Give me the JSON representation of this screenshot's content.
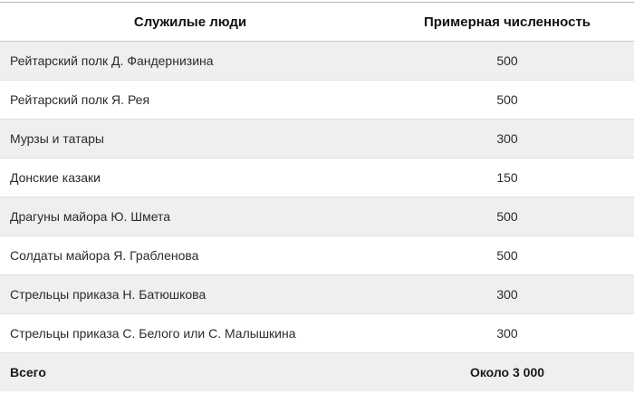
{
  "table": {
    "columns": [
      {
        "label": "Служилые люди"
      },
      {
        "label": "Примерная численность"
      }
    ],
    "rows": [
      {
        "name": "Рейтарский полк Д. Фандернизина",
        "value": "500"
      },
      {
        "name": "Рейтарский полк Я. Рея",
        "value": "500"
      },
      {
        "name": "Мурзы и татары",
        "value": "300"
      },
      {
        "name": "Донские казаки",
        "value": "150"
      },
      {
        "name": "Драгуны майора Ю. Шмета",
        "value": "500"
      },
      {
        "name": "Солдаты майора Я. Грабленова",
        "value": "500"
      },
      {
        "name": "Стрельцы приказа Н. Батюшкова",
        "value": "300"
      },
      {
        "name": "Стрельцы приказа С. Белого или С. Малышкина",
        "value": "300"
      }
    ],
    "footer": {
      "label": "Всего",
      "value": "Около 3 000"
    },
    "colors": {
      "stripe": "#efefef",
      "row_border": "#e0e0e0",
      "top_border": "#b9b9b9",
      "header_border": "#c9c9c9",
      "footer_border": "#a6a6a6",
      "text": "#2b2b2b",
      "header_text": "#111111"
    }
  },
  "chart_data": {
    "type": "table",
    "title": "",
    "columns": [
      "Служилые люди",
      "Примерная численность"
    ],
    "categories": [
      "Рейтарский полк Д. Фандернизина",
      "Рейтарский полк Я. Рея",
      "Мурзы и татары",
      "Донские казаки",
      "Драгуны майора Ю. Шмета",
      "Солдаты майора Я. Грабленова",
      "Стрельцы приказа Н. Батюшкова",
      "Стрельцы приказа С. Белого или С. Малышкина"
    ],
    "values": [
      500,
      500,
      300,
      150,
      500,
      500,
      300,
      300
    ],
    "total_label": "Всего",
    "total_value": "Около 3 000",
    "layout": "striped rows, value column centered, bold header and total row"
  }
}
